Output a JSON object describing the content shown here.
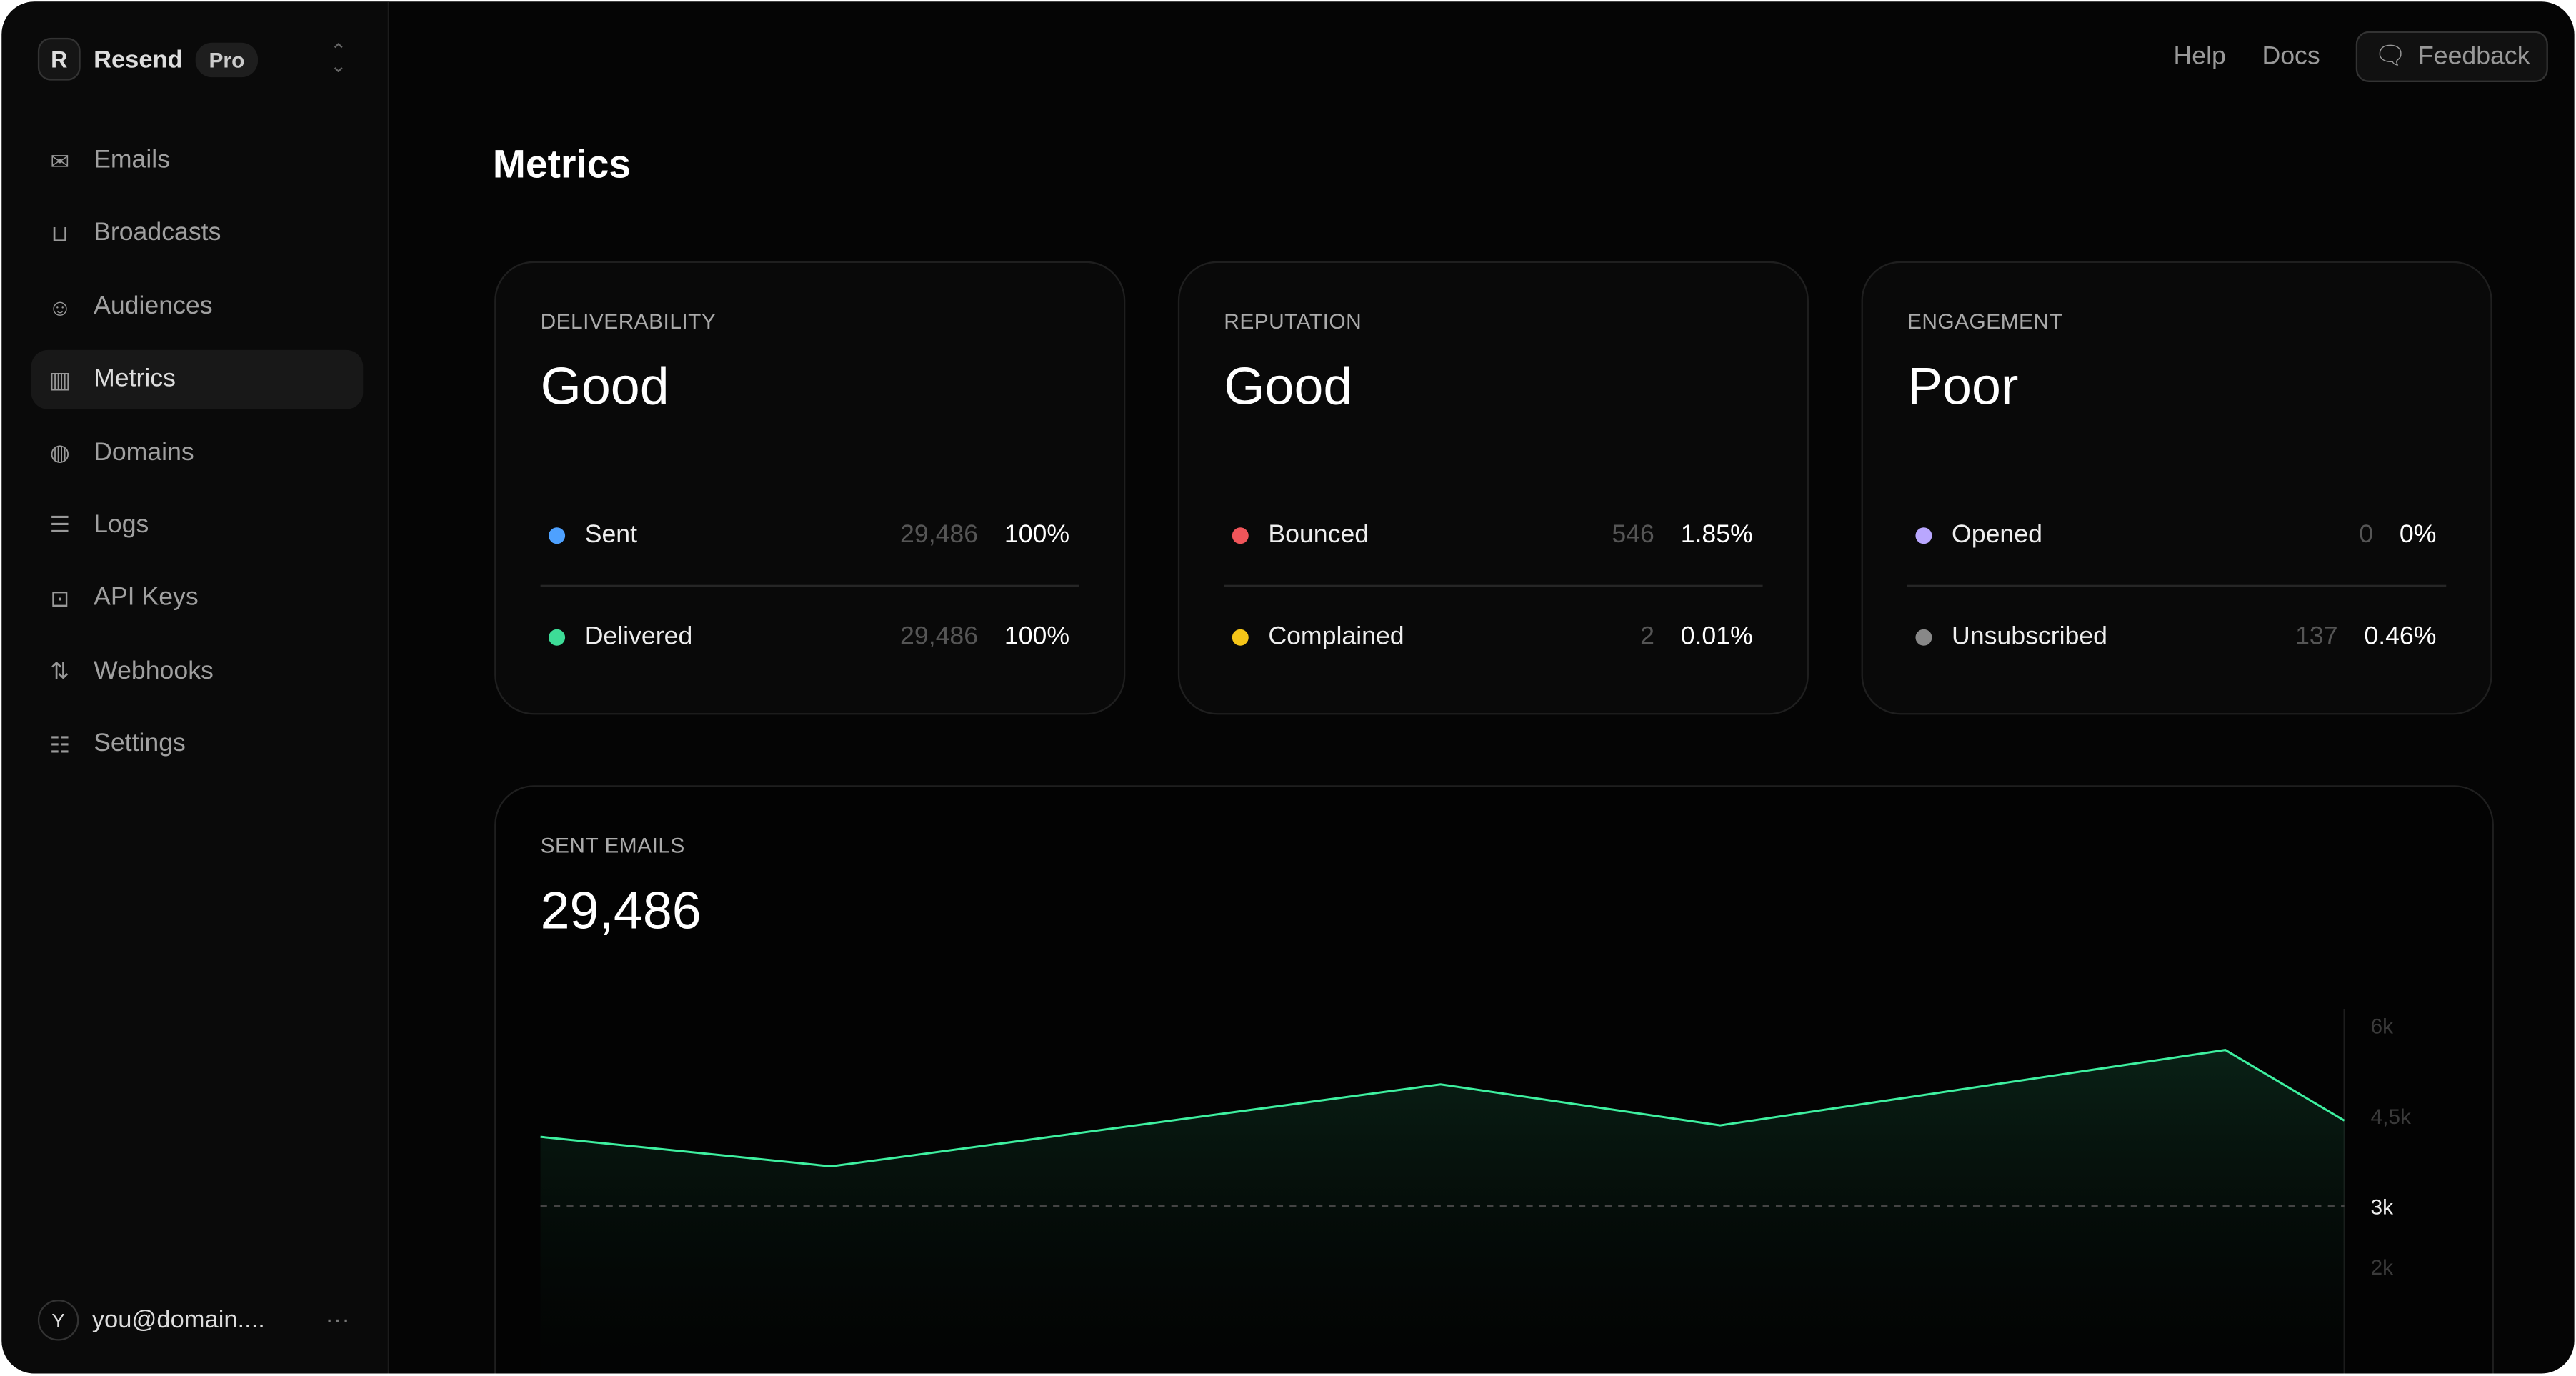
{
  "sidebar": {
    "brand": "Resend",
    "plan": "Pro",
    "items": [
      {
        "label": "Emails",
        "icon": "mail-icon"
      },
      {
        "label": "Broadcasts",
        "icon": "inbox-icon"
      },
      {
        "label": "Audiences",
        "icon": "users-icon"
      },
      {
        "label": "Metrics",
        "icon": "bar-chart-icon",
        "active": true
      },
      {
        "label": "Domains",
        "icon": "globe-icon"
      },
      {
        "label": "Logs",
        "icon": "logs-icon"
      },
      {
        "label": "API Keys",
        "icon": "key-icon"
      },
      {
        "label": "Webhooks",
        "icon": "webhook-icon"
      },
      {
        "label": "Settings",
        "icon": "settings-icon"
      }
    ],
    "user": {
      "initial": "Y",
      "email": "you@domain....",
      "more": "···"
    }
  },
  "header": {
    "help": "Help",
    "docs": "Docs",
    "feedback": "Feedback"
  },
  "page_title": "Metrics",
  "cards": [
    {
      "label": "DELIVERABILITY",
      "status": "Good",
      "rows": [
        {
          "name": "Sent",
          "count": "29,486",
          "pct": "100%",
          "color": "#4ea1ff"
        },
        {
          "name": "Delivered",
          "count": "29,486",
          "pct": "100%",
          "color": "#3ddc97"
        }
      ]
    },
    {
      "label": "REPUTATION",
      "status": "Good",
      "rows": [
        {
          "name": "Bounced",
          "count": "546",
          "pct": "1.85%",
          "color": "#f0555a"
        },
        {
          "name": "Complained",
          "count": "2",
          "pct": "0.01%",
          "color": "#f5c518"
        }
      ]
    },
    {
      "label": "ENGAGEMENT",
      "status": "Poor",
      "rows": [
        {
          "name": "Opened",
          "count": "0",
          "pct": "0%",
          "color": "#b9a7ff"
        },
        {
          "name": "Unsubscribed",
          "count": "137",
          "pct": "0.46%",
          "color": "#888888"
        }
      ]
    }
  ],
  "sent_emails": {
    "label": "SENT EMAILS",
    "total": "29,486"
  },
  "chart_data": {
    "type": "area",
    "line_color": "#3ef0a0",
    "y_ticks": [
      {
        "value": 6000,
        "label": "6k"
      },
      {
        "value": 4500,
        "label": "4,5k"
      },
      {
        "value": 3000,
        "label": "3k",
        "highlight": true
      },
      {
        "value": 2000,
        "label": "2k"
      }
    ],
    "reference_line": 3000,
    "values": [
      4150,
      3660,
      5020,
      4340,
      5590,
      4420
    ],
    "x_positions": [
      0,
      0.161,
      0.499,
      0.654,
      0.934,
      1.0
    ]
  }
}
